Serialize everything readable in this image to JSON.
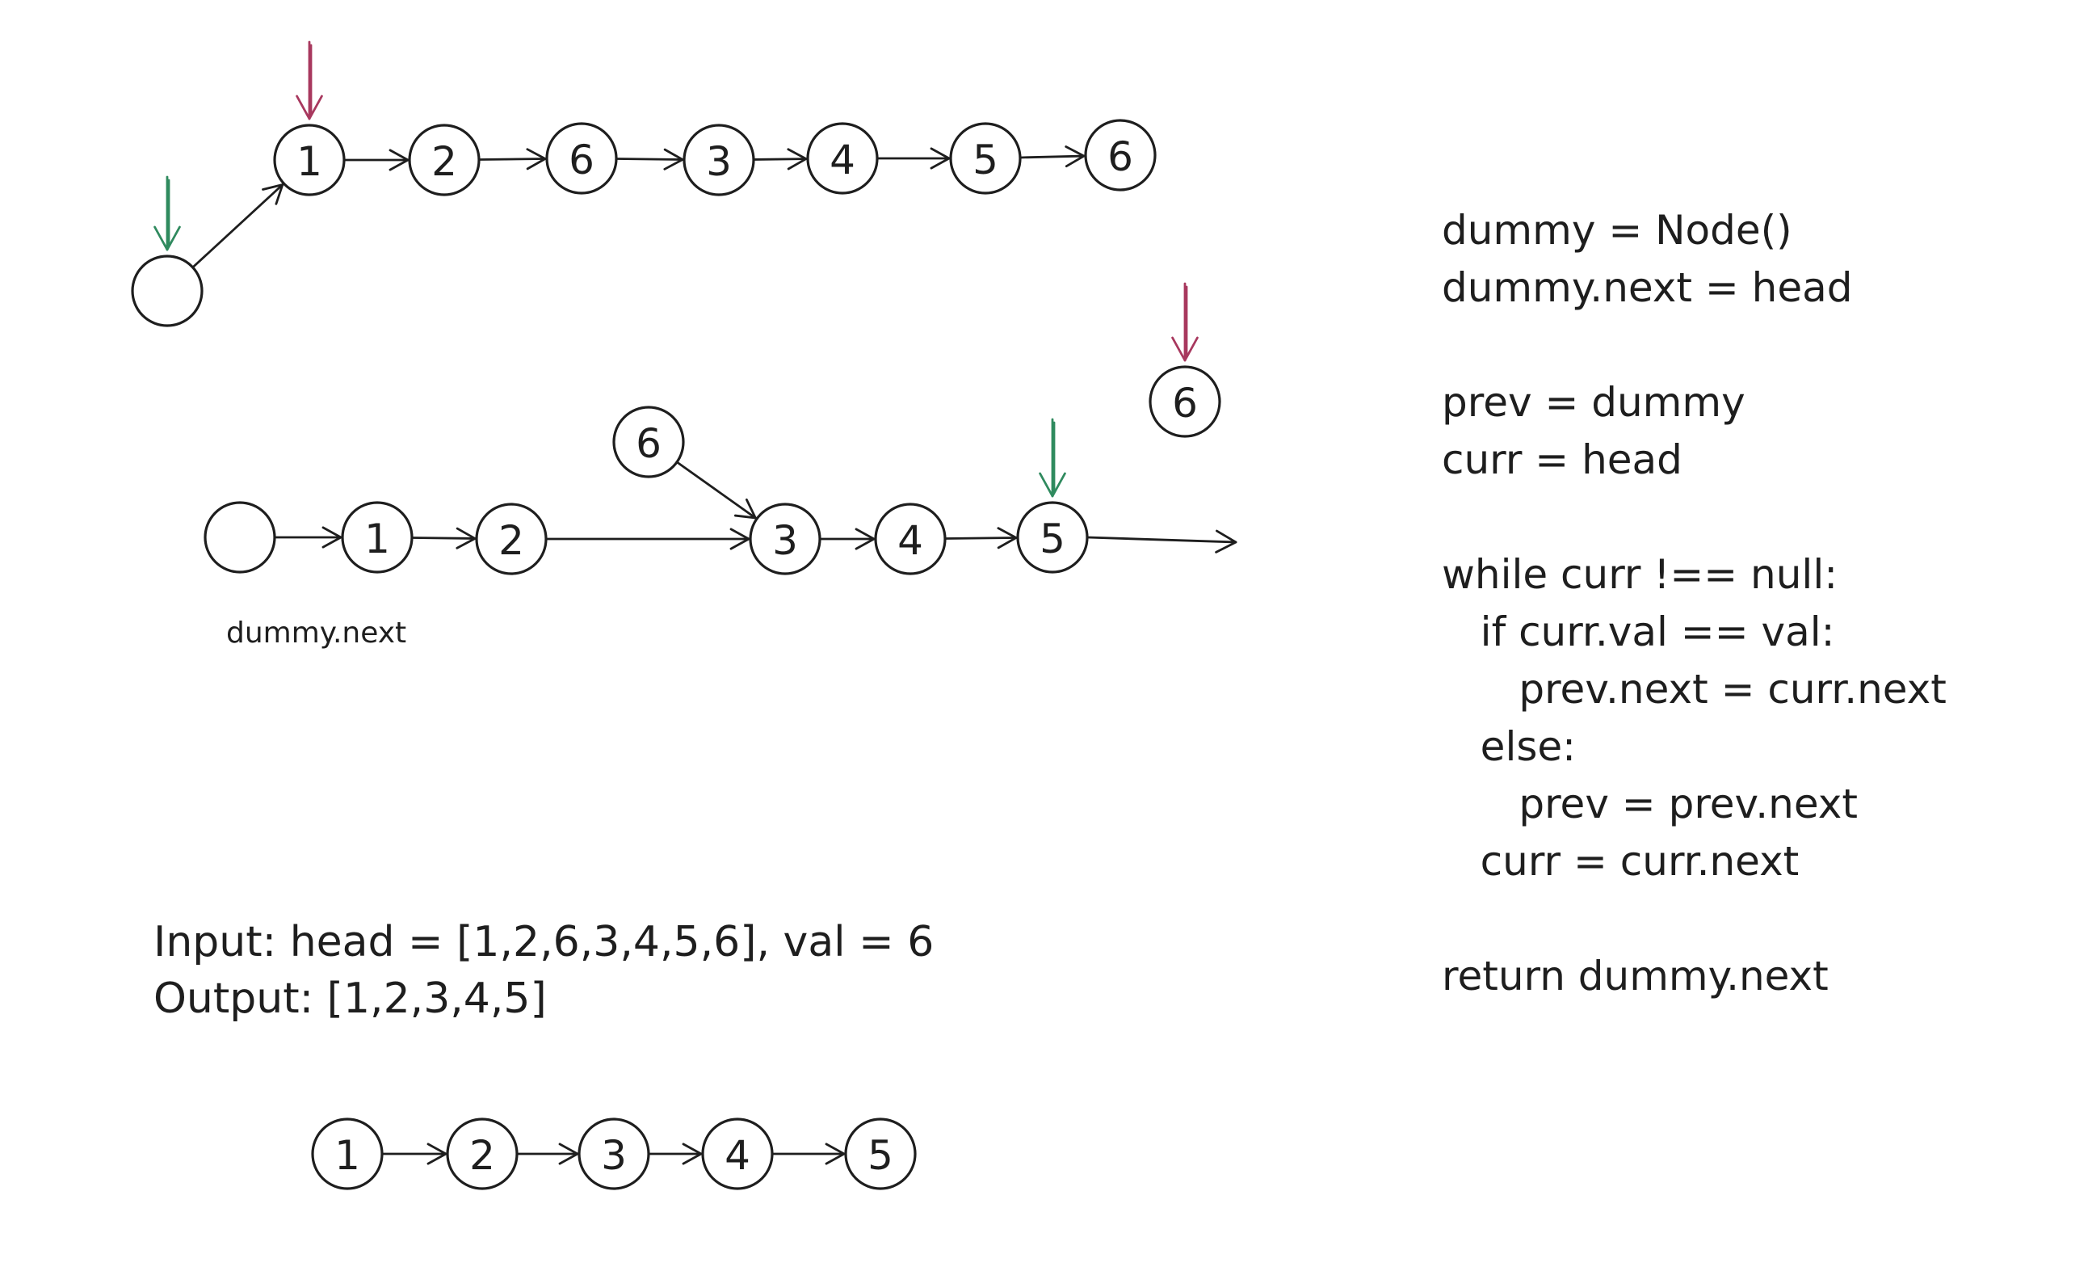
{
  "colors": {
    "ink": "#1e1e1e",
    "curr_pointer": "#a8385e",
    "prev_pointer": "#2f8a5e"
  },
  "diagram1": {
    "nodes": [
      {
        "id": "d1-dummy",
        "label": ""
      },
      {
        "id": "d1-n1",
        "label": "1"
      },
      {
        "id": "d1-n2",
        "label": "2"
      },
      {
        "id": "d1-n3",
        "label": "6"
      },
      {
        "id": "d1-n4",
        "label": "3"
      },
      {
        "id": "d1-n5",
        "label": "4"
      },
      {
        "id": "d1-n6",
        "label": "5"
      },
      {
        "id": "d1-n7",
        "label": "6"
      }
    ],
    "edges": [
      [
        "d1-dummy",
        "d1-n1"
      ],
      [
        "d1-n1",
        "d1-n2"
      ],
      [
        "d1-n2",
        "d1-n3"
      ],
      [
        "d1-n3",
        "d1-n4"
      ],
      [
        "d1-n4",
        "d1-n5"
      ],
      [
        "d1-n5",
        "d1-n6"
      ],
      [
        "d1-n6",
        "d1-n7"
      ]
    ]
  },
  "diagram2": {
    "nodes": [
      {
        "id": "d2-dummy",
        "label": ""
      },
      {
        "id": "d2-n1",
        "label": "1"
      },
      {
        "id": "d2-n2",
        "label": "2"
      },
      {
        "id": "d2-removed6a",
        "label": "6"
      },
      {
        "id": "d2-n3",
        "label": "3"
      },
      {
        "id": "d2-n4",
        "label": "4"
      },
      {
        "id": "d2-n5",
        "label": "5"
      },
      {
        "id": "d2-removed6b",
        "label": "6"
      }
    ],
    "edges": [
      [
        "d2-dummy",
        "d2-n1"
      ],
      [
        "d2-n1",
        "d2-n2"
      ],
      [
        "d2-n2",
        "d2-n3"
      ],
      [
        "d2-removed6a",
        "d2-n3"
      ],
      [
        "d2-n3",
        "d2-n4"
      ],
      [
        "d2-n4",
        "d2-n5"
      ]
    ],
    "dummy_label": "dummy.next"
  },
  "diagram3": {
    "nodes": [
      {
        "id": "d3-n1",
        "label": "1"
      },
      {
        "id": "d3-n2",
        "label": "2"
      },
      {
        "id": "d3-n3",
        "label": "3"
      },
      {
        "id": "d3-n4",
        "label": "4"
      },
      {
        "id": "d3-n5",
        "label": "5"
      }
    ],
    "edges": [
      [
        "d3-n1",
        "d3-n2"
      ],
      [
        "d3-n2",
        "d3-n3"
      ],
      [
        "d3-n3",
        "d3-n4"
      ],
      [
        "d3-n4",
        "d3-n5"
      ]
    ]
  },
  "example": {
    "input": "Input: head = [1,2,6,3,4,5,6], val = 6",
    "output": "Output: [1,2,3,4,5]"
  },
  "code": [
    "dummy = Node()",
    "dummy.next = head",
    "",
    "prev = dummy",
    "curr = head",
    "",
    "while curr !== null:",
    "   if curr.val == val:",
    "      prev.next = curr.next",
    "   else:",
    "      prev = prev.next",
    "   curr = curr.next",
    "",
    "return dummy.next"
  ]
}
